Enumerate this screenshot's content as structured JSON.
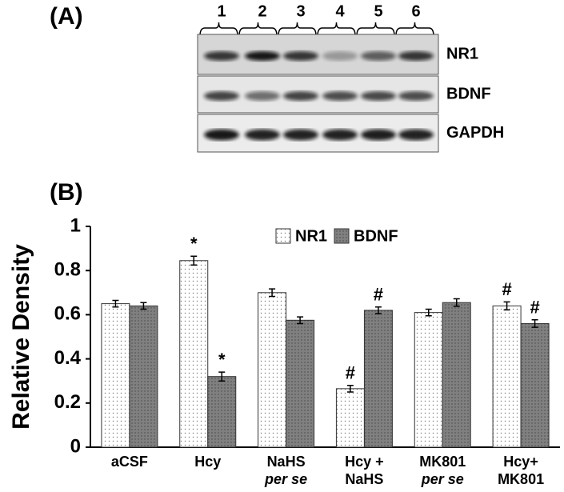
{
  "panel_labels": [
    "(A)",
    "(B)"
  ],
  "blot": {
    "lanes": [
      "1",
      "2",
      "3",
      "4",
      "5",
      "6"
    ],
    "bands": [
      "NR1",
      "BDNF",
      "GAPDH"
    ]
  },
  "chart_data": {
    "type": "bar",
    "y_label": "Relative Density",
    "categories": [
      [
        "aCSF"
      ],
      [
        "Hcy"
      ],
      [
        "NaHS",
        "per se"
      ],
      [
        "Hcy +",
        "NaHS"
      ],
      [
        "MK801",
        "per se"
      ],
      [
        "Hcy+",
        "MK801"
      ]
    ],
    "series": [
      {
        "name": "NR1",
        "color": "#ffffff",
        "values": [
          0.65,
          0.845,
          0.7,
          0.265,
          0.61,
          0.64
        ],
        "errors": [
          0.015,
          0.02,
          0.017,
          0.015,
          0.015,
          0.018
        ],
        "markers": [
          null,
          "*",
          null,
          "#",
          null,
          "#"
        ]
      },
      {
        "name": "BDNF",
        "color": "#808080",
        "values": [
          0.64,
          0.32,
          0.575,
          0.62,
          0.655,
          0.56
        ],
        "errors": [
          0.015,
          0.02,
          0.015,
          0.015,
          0.017,
          0.017
        ],
        "markers": [
          null,
          "*",
          null,
          "#",
          null,
          "#"
        ]
      }
    ],
    "ylim": [
      0,
      1
    ],
    "yticks": [
      0,
      0.2,
      0.4,
      0.6,
      0.8,
      1
    ],
    "legend": "top"
  }
}
